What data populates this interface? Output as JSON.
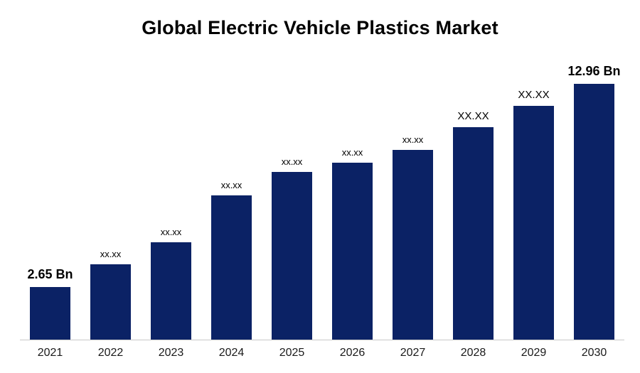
{
  "chart_data": {
    "type": "bar",
    "title": "Global Electric Vehicle Plastics Market",
    "categories": [
      "2021",
      "2022",
      "2023",
      "2024",
      "2025",
      "2026",
      "2027",
      "2028",
      "2029",
      "2030"
    ],
    "values": [
      2.65,
      3.8,
      4.95,
      7.3,
      8.5,
      8.95,
      9.6,
      10.75,
      11.85,
      12.96
    ],
    "bar_labels": [
      "2.65 Bn",
      "xx.xx",
      "xx.xx",
      "xx.xx",
      "xx.xx",
      "xx.xx",
      "xx.xx",
      "XX.XX",
      "XX.XX",
      "12.96 Bn"
    ],
    "ylim": [
      0,
      12.96
    ],
    "bar_color": "#0b2265",
    "axis_line_color": "#c9c9c9",
    "grid": false,
    "legend": "none",
    "xlabel": "",
    "ylabel": ""
  }
}
